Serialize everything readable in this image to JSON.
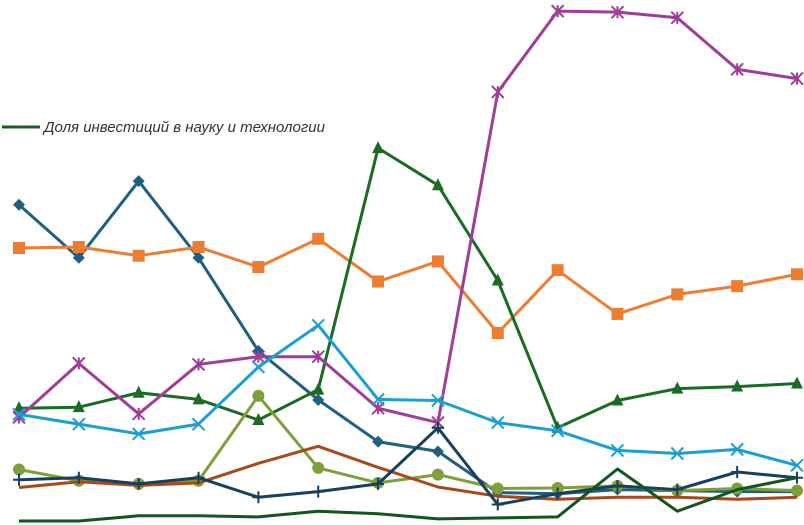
{
  "chart_data": {
    "type": "line",
    "title": "",
    "xlabel": "",
    "ylabel": "",
    "x": [
      1,
      2,
      3,
      4,
      5,
      6,
      7,
      8,
      9,
      10,
      11,
      12,
      13,
      14
    ],
    "ylim": [
      0,
      100
    ],
    "grid": false,
    "legend": {
      "placement": "left",
      "entries": [
        {
          "label": "Доля инвестиций в науку и технологии",
          "color": "#1f5c24"
        }
      ]
    },
    "series": [
      {
        "color": "#1e5f82",
        "marker": "diamond",
        "values": [
          61.6,
          51.3,
          66.2,
          51.3,
          33.2,
          23.7,
          15.6,
          13.7,
          5.7,
          5.5,
          6.3,
          6.1,
          5.9,
          5.9
        ]
      },
      {
        "color": "#ed7d31",
        "marker": "square",
        "values": [
          53.2,
          53.4,
          51.7,
          53.4,
          49.5,
          55.0,
          46.7,
          50.6,
          36.7,
          48.9,
          40.4,
          44.2,
          45.8,
          48.1
        ]
      },
      {
        "color": "#1b6b25",
        "marker": "triangle",
        "values": [
          22.1,
          22.3,
          25.1,
          23.8,
          19.8,
          25.7,
          72.6,
          65.4,
          46.9,
          18.3,
          23.6,
          25.9,
          26.3,
          26.9
        ]
      },
      {
        "color": "#7f9f3a",
        "marker": "circle",
        "values": [
          10.2,
          8.0,
          7.4,
          8.0,
          24.5,
          10.5,
          7.6,
          9.2,
          6.5,
          6.6,
          7.0,
          6.1,
          6.5,
          6.1
        ]
      },
      {
        "color": "#a03d96",
        "marker": "star",
        "values": [
          20.3,
          30.8,
          21.0,
          30.6,
          32.1,
          32.1,
          22.1,
          19.3,
          83.5,
          99.2,
          99.0,
          97.9,
          87.9,
          86.1
        ]
      },
      {
        "color": "#1a9fd0",
        "marker": "x",
        "values": [
          20.9,
          19.0,
          17.1,
          19.0,
          30.1,
          38.2,
          23.8,
          23.6,
          19.3,
          17.7,
          13.9,
          13.3,
          14.1,
          11.0
        ]
      },
      {
        "color": "#a8491b",
        "marker": "none",
        "values": [
          6.7,
          7.8,
          7.1,
          7.6,
          11.4,
          14.7,
          10.6,
          6.8,
          5.0,
          4.4,
          4.8,
          4.8,
          4.4,
          4.8
        ]
      },
      {
        "color": "#16405e",
        "marker": "plus",
        "values": [
          8.2,
          8.6,
          7.4,
          8.6,
          4.8,
          5.9,
          7.4,
          18.3,
          3.4,
          5.5,
          7.0,
          6.3,
          9.7,
          8.6
        ]
      },
      {
        "color": "#14541f",
        "marker": "none",
        "values": [
          0.2,
          0.2,
          1.2,
          1.2,
          1.0,
          2.1,
          1.6,
          0.6,
          0.8,
          1.0,
          10.3,
          2.1,
          6.3,
          8.6
        ]
      }
    ]
  }
}
